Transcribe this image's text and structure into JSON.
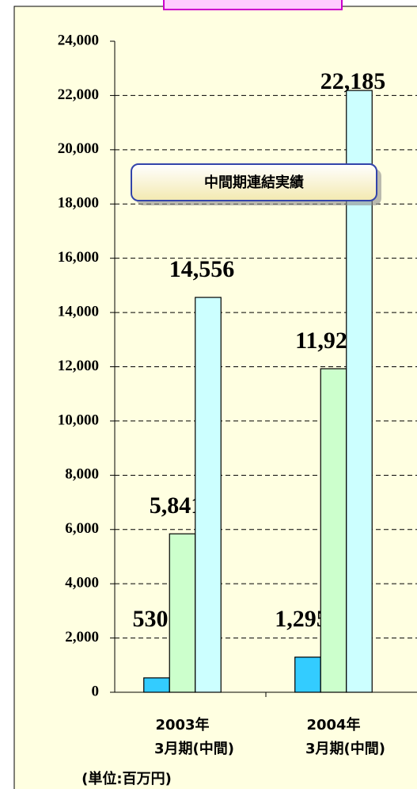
{
  "chart_data": {
    "type": "bar",
    "annotation": "中間期連結実績",
    "unit_label": "(単位:百万円)",
    "categories": [
      [
        "2003年",
        "3月期(中間)"
      ],
      [
        "2004年",
        "3月期(中間)"
      ]
    ],
    "series": [
      {
        "color": "#33ccff",
        "values": [
          530,
          1295
        ],
        "value_labels": [
          "530",
          "1,295"
        ]
      },
      {
        "color": "#ccffcc",
        "values": [
          5841,
          11927
        ],
        "value_labels": [
          "5,841",
          "11,927"
        ]
      },
      {
        "color": "#ccffff",
        "values": [
          14556,
          22185
        ],
        "value_labels": [
          "14,556",
          "22,185"
        ]
      }
    ],
    "ylim": [
      0,
      24000
    ],
    "yticks": [
      0,
      {
        "value": 2000,
        "label": "2,000"
      },
      {
        "value": 4000,
        "label": "4,000"
      },
      {
        "value": 6000,
        "label": "6,000"
      },
      {
        "value": 8000,
        "label": "8,000"
      },
      {
        "value": 10000,
        "label": "10,000"
      },
      {
        "value": 12000,
        "label": "12,000"
      },
      {
        "value": 14000,
        "label": "14,000"
      },
      {
        "value": 16000,
        "label": "16,000"
      },
      {
        "value": 18000,
        "label": "18,000"
      },
      {
        "value": 20000,
        "label": "20,000"
      },
      {
        "value": 22000,
        "label": "22,000"
      },
      {
        "value": 24000,
        "label": "24,000"
      }
    ],
    "grid": true
  }
}
